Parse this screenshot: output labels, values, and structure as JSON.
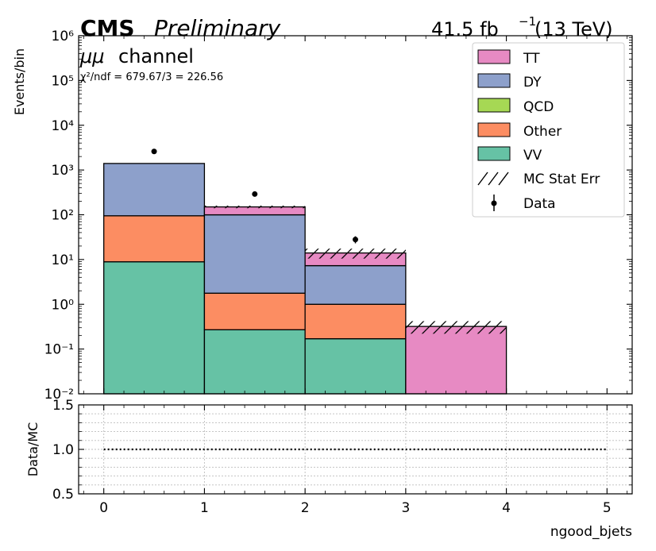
{
  "header": {
    "experiment": "CMS",
    "status": "Preliminary",
    "lumi": "41.5 fb",
    "lumi_exp": "−1",
    "energy": "(13 TeV)",
    "channel_mu": "μμ",
    "channel_word": "channel",
    "chi2": "χ²/ndf = 679.67/3 = 226.56"
  },
  "chart_data": [
    {
      "type": "bar",
      "stacked": true,
      "yscale": "log",
      "ylabel": "Events/bin",
      "ylim": [
        0.01,
        1000000
      ],
      "xlim": [
        -0.25,
        5.25
      ],
      "bin_edges": [
        0,
        1,
        2,
        3,
        4
      ],
      "xticks": [
        "0",
        "1",
        "2",
        "3",
        "4",
        "5"
      ],
      "yticks": [
        "10⁻²",
        "10⁻¹",
        "10⁰",
        "10¹",
        "10²",
        "10³",
        "10⁴",
        "10⁵",
        "10⁶"
      ],
      "grid": false,
      "legend_position": "top-right",
      "series": [
        {
          "name": "VV",
          "color": "#66c2a5",
          "values": [
            8.9,
            0.27,
            0.17,
            0
          ]
        },
        {
          "name": "Other",
          "color": "#fc8d62",
          "values": [
            86,
            1.5,
            0.83,
            0
          ]
        },
        {
          "name": "QCD",
          "color": "#a6d854",
          "values": [
            0,
            0,
            0,
            0
          ]
        },
        {
          "name": "DY",
          "color": "#8da0cb",
          "values": [
            1305,
            98,
            6.3,
            0
          ]
        },
        {
          "name": "TT",
          "color": "#e78ac3",
          "values": [
            0,
            50,
            6.7,
            0.32
          ]
        }
      ],
      "mc_stat_err": {
        "name": "MC Stat Err",
        "lower": [
          1390,
          140,
          10.5,
          0.22
        ],
        "upper": [
          1410,
          160,
          17.5,
          0.42
        ]
      },
      "data": {
        "name": "Data",
        "x": [
          0.5,
          1.5,
          2.5
        ],
        "values": [
          2600,
          290,
          28
        ],
        "errors": [
          51,
          17,
          5
        ]
      }
    },
    {
      "type": "line",
      "ylabel": "Data/MC",
      "xlabel": "ngood_bjets",
      "ylim": [
        0.5,
        1.5
      ],
      "xlim": [
        -0.25,
        5.25
      ],
      "yticks": [
        "0.5",
        "1.0",
        "1.5"
      ],
      "xticks": [
        "0",
        "1",
        "2",
        "3",
        "4",
        "5"
      ],
      "grid": true,
      "reference_line": {
        "x": [
          0,
          5
        ],
        "y": [
          1.0,
          1.0
        ],
        "style": "dotted"
      }
    }
  ]
}
